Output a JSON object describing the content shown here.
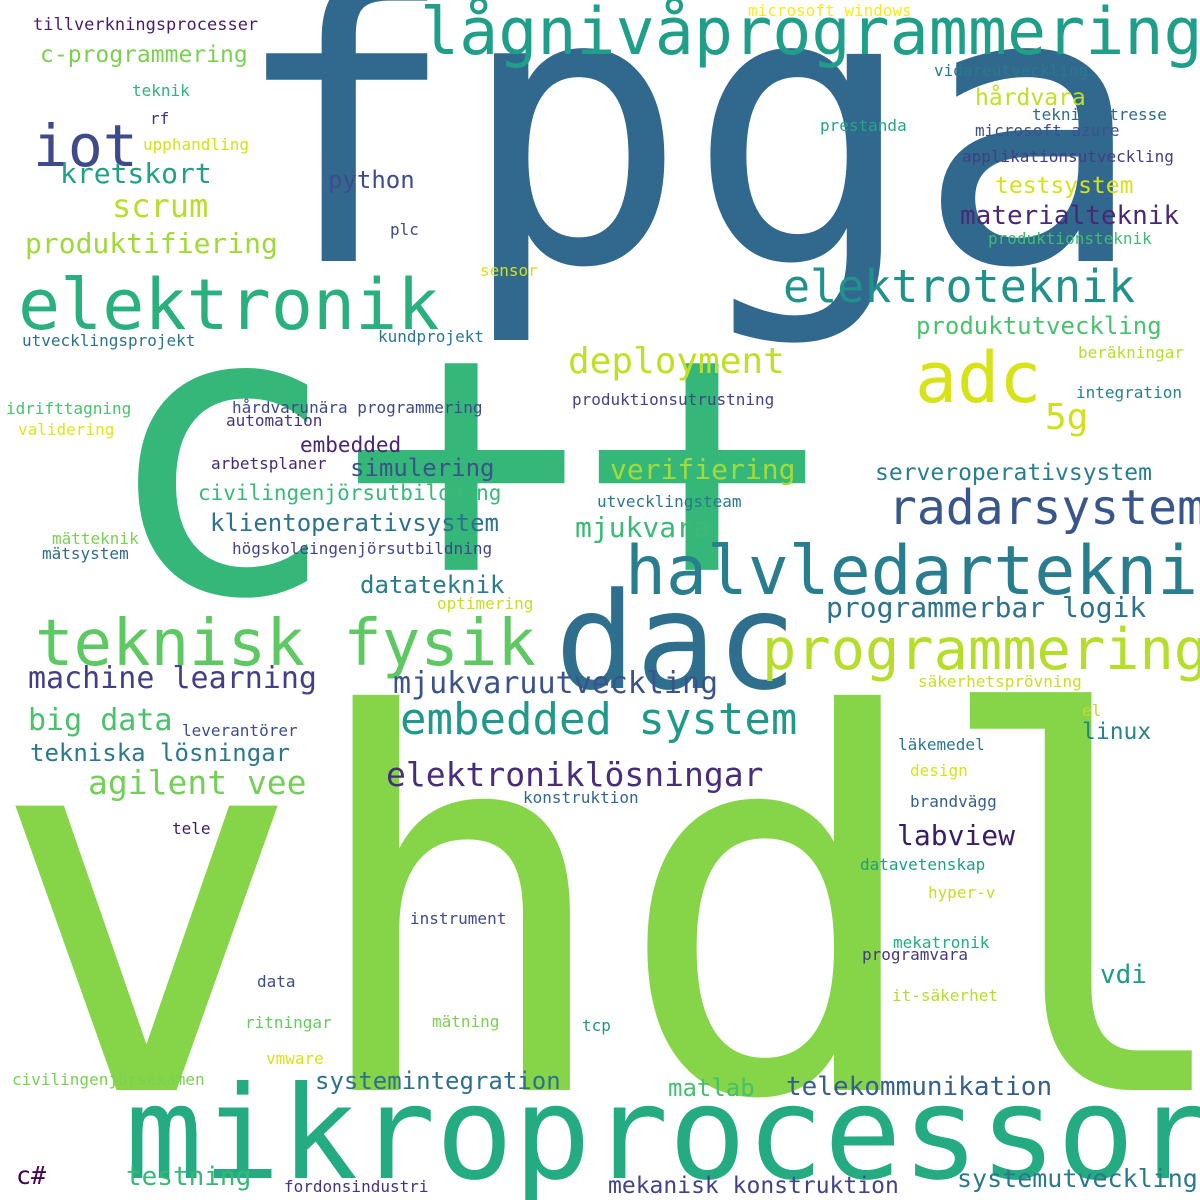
{
  "words": [
    {
      "text": "vhdl",
      "color": "#86d549"
    },
    {
      "text": "fpga",
      "color": "#31688e"
    },
    {
      "text": "c++",
      "color": "#35b779"
    },
    {
      "text": "mikroprocessor",
      "color": "#25ab82"
    },
    {
      "text": "dac",
      "color": "#2e6f8e"
    },
    {
      "text": "halvledarteknik",
      "color": "#287d8e"
    },
    {
      "text": "lågnivåprogrammering",
      "color": "#1f9e89"
    },
    {
      "text": "elektronik",
      "color": "#2ab07f"
    },
    {
      "text": "teknisk fysik",
      "color": "#5ec962"
    },
    {
      "text": "programmering",
      "color": "#b5de2b"
    },
    {
      "text": "radarsystem",
      "color": "#39568c"
    },
    {
      "text": "embedded system",
      "color": "#1f9a8a"
    },
    {
      "text": "elektroteknik",
      "color": "#21918c"
    },
    {
      "text": "adc",
      "color": "#d8e219"
    },
    {
      "text": "iot",
      "color": "#3e4a89"
    },
    {
      "text": "elektroniklösningar",
      "color": "#472d7b"
    },
    {
      "text": "deployment",
      "color": "#c2df23"
    },
    {
      "text": "machine learning",
      "color": "#433e85"
    },
    {
      "text": "mjukvaruutveckling",
      "color": "#3b528b"
    },
    {
      "text": "programmerbar logik",
      "color": "#2c728e"
    },
    {
      "text": "agilent vee",
      "color": "#73d056"
    },
    {
      "text": "big data",
      "color": "#4ac16d"
    },
    {
      "text": "tekniska lösningar",
      "color": "#2a788e"
    },
    {
      "text": "scrum",
      "color": "#b8de29"
    },
    {
      "text": "kretskort",
      "color": "#1fa187"
    },
    {
      "text": "produktifiering",
      "color": "#a0da39"
    },
    {
      "text": "verifiering",
      "color": "#a5db36"
    },
    {
      "text": "mjukvara",
      "color": "#3aba76"
    },
    {
      "text": "labview",
      "color": "#3b1c68"
    },
    {
      "text": "telekommunikation",
      "color": "#355f8d"
    },
    {
      "text": "systemintegration",
      "color": "#2d708e"
    },
    {
      "text": "matlab",
      "color": "#46c06f"
    },
    {
      "text": "klientoperativsystem",
      "color": "#2c728e"
    },
    {
      "text": "civilingenjörsutbildning",
      "color": "#38b977"
    },
    {
      "text": "serveroperativsystem",
      "color": "#287d8e"
    },
    {
      "text": "materialteknik",
      "color": "#482878"
    },
    {
      "text": "produktutveckling",
      "color": "#4ac16d"
    },
    {
      "text": "testsystem",
      "color": "#d5e21a"
    },
    {
      "text": "hårdvara",
      "color": "#c0df25"
    },
    {
      "text": "python",
      "color": "#3e4c8a"
    },
    {
      "text": "5g",
      "color": "#d0e11c"
    },
    {
      "text": "simulering",
      "color": "#3b528b"
    },
    {
      "text": "datateknik",
      "color": "#287c8e"
    },
    {
      "text": "embedded",
      "color": "#482475"
    },
    {
      "text": "mekanisk konstruktion",
      "color": "#404387"
    },
    {
      "text": "systemutveckling",
      "color": "#2a788e"
    },
    {
      "text": "testning",
      "color": "#37b878"
    },
    {
      "text": "c-programmering",
      "color": "#7ad151"
    },
    {
      "text": "vdi",
      "color": "#1e9b8a"
    },
    {
      "text": "linux",
      "color": "#25838e"
    },
    {
      "text": "c#",
      "color": "#440154"
    },
    {
      "text": "tillverkningsprocesser",
      "color": "#481b6d"
    },
    {
      "text": "microsoft windows",
      "color": "#fde725"
    },
    {
      "text": "vidareutveckling",
      "color": "#2a788e"
    },
    {
      "text": "teknikintresse",
      "color": "#31688e"
    },
    {
      "text": "microsoft azure",
      "color": "#3b528b"
    },
    {
      "text": "prestanda",
      "color": "#22a785"
    },
    {
      "text": "applikationsutveckling",
      "color": "#433e85"
    },
    {
      "text": "produktionsteknik",
      "color": "#3fbc73"
    },
    {
      "text": "teknik",
      "color": "#2eb37c"
    },
    {
      "text": "rf",
      "color": "#46337e"
    },
    {
      "text": "upphandling",
      "color": "#d2e21b"
    },
    {
      "text": "plc",
      "color": "#3e4a89"
    },
    {
      "text": "sensor",
      "color": "#d0e11c"
    },
    {
      "text": "utvecklingsprojekt",
      "color": "#2c728e"
    },
    {
      "text": "kundprojekt",
      "color": "#2a788e"
    },
    {
      "text": "beräkningar",
      "color": "#b5de2b"
    },
    {
      "text": "integration",
      "color": "#26828e"
    },
    {
      "text": "idrifttagning",
      "color": "#4ac16d"
    },
    {
      "text": "validering",
      "color": "#e2e418"
    },
    {
      "text": "hårdvarunära programmering",
      "color": "#3e4989"
    },
    {
      "text": "automation",
      "color": "#46327e"
    },
    {
      "text": "produktionsutrustning",
      "color": "#414487"
    },
    {
      "text": "arbetsplaner",
      "color": "#482677"
    },
    {
      "text": "utvecklingsteam",
      "color": "#2a788e"
    },
    {
      "text": "mätteknik",
      "color": "#7ad151"
    },
    {
      "text": "mätsystem",
      "color": "#2f6c8e"
    },
    {
      "text": "högskoleingenjörsutbildning",
      "color": "#414487"
    },
    {
      "text": "optimering",
      "color": "#c5e021"
    },
    {
      "text": "säkerhetsprövning",
      "color": "#c8e020"
    },
    {
      "text": "leverantörer",
      "color": "#3d4d8a"
    },
    {
      "text": "el",
      "color": "#bddf26"
    },
    {
      "text": "läkemedel",
      "color": "#2a788e"
    },
    {
      "text": "design",
      "color": "#d8e219"
    },
    {
      "text": "konstruktion",
      "color": "#31688e"
    },
    {
      "text": "brandvägg",
      "color": "#355f8d"
    },
    {
      "text": "tele",
      "color": "#3b1c68"
    },
    {
      "text": "datavetenskap",
      "color": "#1f9e89"
    },
    {
      "text": "hyper-v",
      "color": "#c5e021"
    },
    {
      "text": "instrument",
      "color": "#3e4a89"
    },
    {
      "text": "mekatronik",
      "color": "#25ab82"
    },
    {
      "text": "programvara",
      "color": "#443983"
    },
    {
      "text": "data",
      "color": "#3e4c8a"
    },
    {
      "text": "it-säkerhet",
      "color": "#b5de2b"
    },
    {
      "text": "ritningar",
      "color": "#65cb5e"
    },
    {
      "text": "mätning",
      "color": "#7ad151"
    },
    {
      "text": "tcp",
      "color": "#1f9a8a"
    },
    {
      "text": "vmware",
      "color": "#d8e219"
    },
    {
      "text": "civilingenjörsexamen",
      "color": "#7ad151"
    },
    {
      "text": "fordonsindustri",
      "color": "#46327e"
    }
  ]
}
